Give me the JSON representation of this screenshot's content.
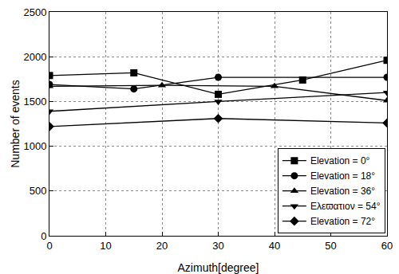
{
  "chart_data": {
    "type": "line",
    "x_label": "Azimuth[degree]",
    "y_label": "Number of events",
    "xlim": [
      0,
      60
    ],
    "xticks": [
      0,
      10,
      20,
      30,
      40,
      50,
      60
    ],
    "ylim": [
      0,
      2500
    ],
    "yticks": [
      0,
      500,
      1000,
      1500,
      2000,
      2500
    ],
    "grid": true,
    "legend": "lower right",
    "series": [
      {
        "name": "Elevation = 0°",
        "color": "#000000",
        "marker": "square",
        "line_style": "solid",
        "x": [
          0,
          15,
          30,
          45,
          60
        ],
        "values": [
          1790,
          1820,
          1580,
          1740,
          1960
        ]
      },
      {
        "name": "Elevation = 18°",
        "color": "#000000",
        "marker": "circle",
        "line_style": "solid",
        "x": [
          0,
          15,
          30,
          60
        ],
        "values": [
          1690,
          1640,
          1770,
          1770
        ]
      },
      {
        "name": "Elevation = 36°",
        "color": "#000000",
        "marker": "triangle-up",
        "line_style": "solid",
        "x": [
          0,
          20,
          40,
          60
        ],
        "values": [
          1670,
          1680,
          1670,
          1510
        ]
      },
      {
        "name": "Ελεϖατιον = 54°",
        "color": "#000000",
        "marker": "triangle-down",
        "line_style": "solid",
        "x": [
          0,
          30,
          60
        ],
        "values": [
          1390,
          1500,
          1600
        ]
      },
      {
        "name": "Elevation = 72°",
        "color": "#000000",
        "marker": "diamond",
        "line_style": "solid",
        "x": [
          0,
          30,
          60
        ],
        "values": [
          1220,
          1310,
          1260
        ]
      }
    ]
  }
}
